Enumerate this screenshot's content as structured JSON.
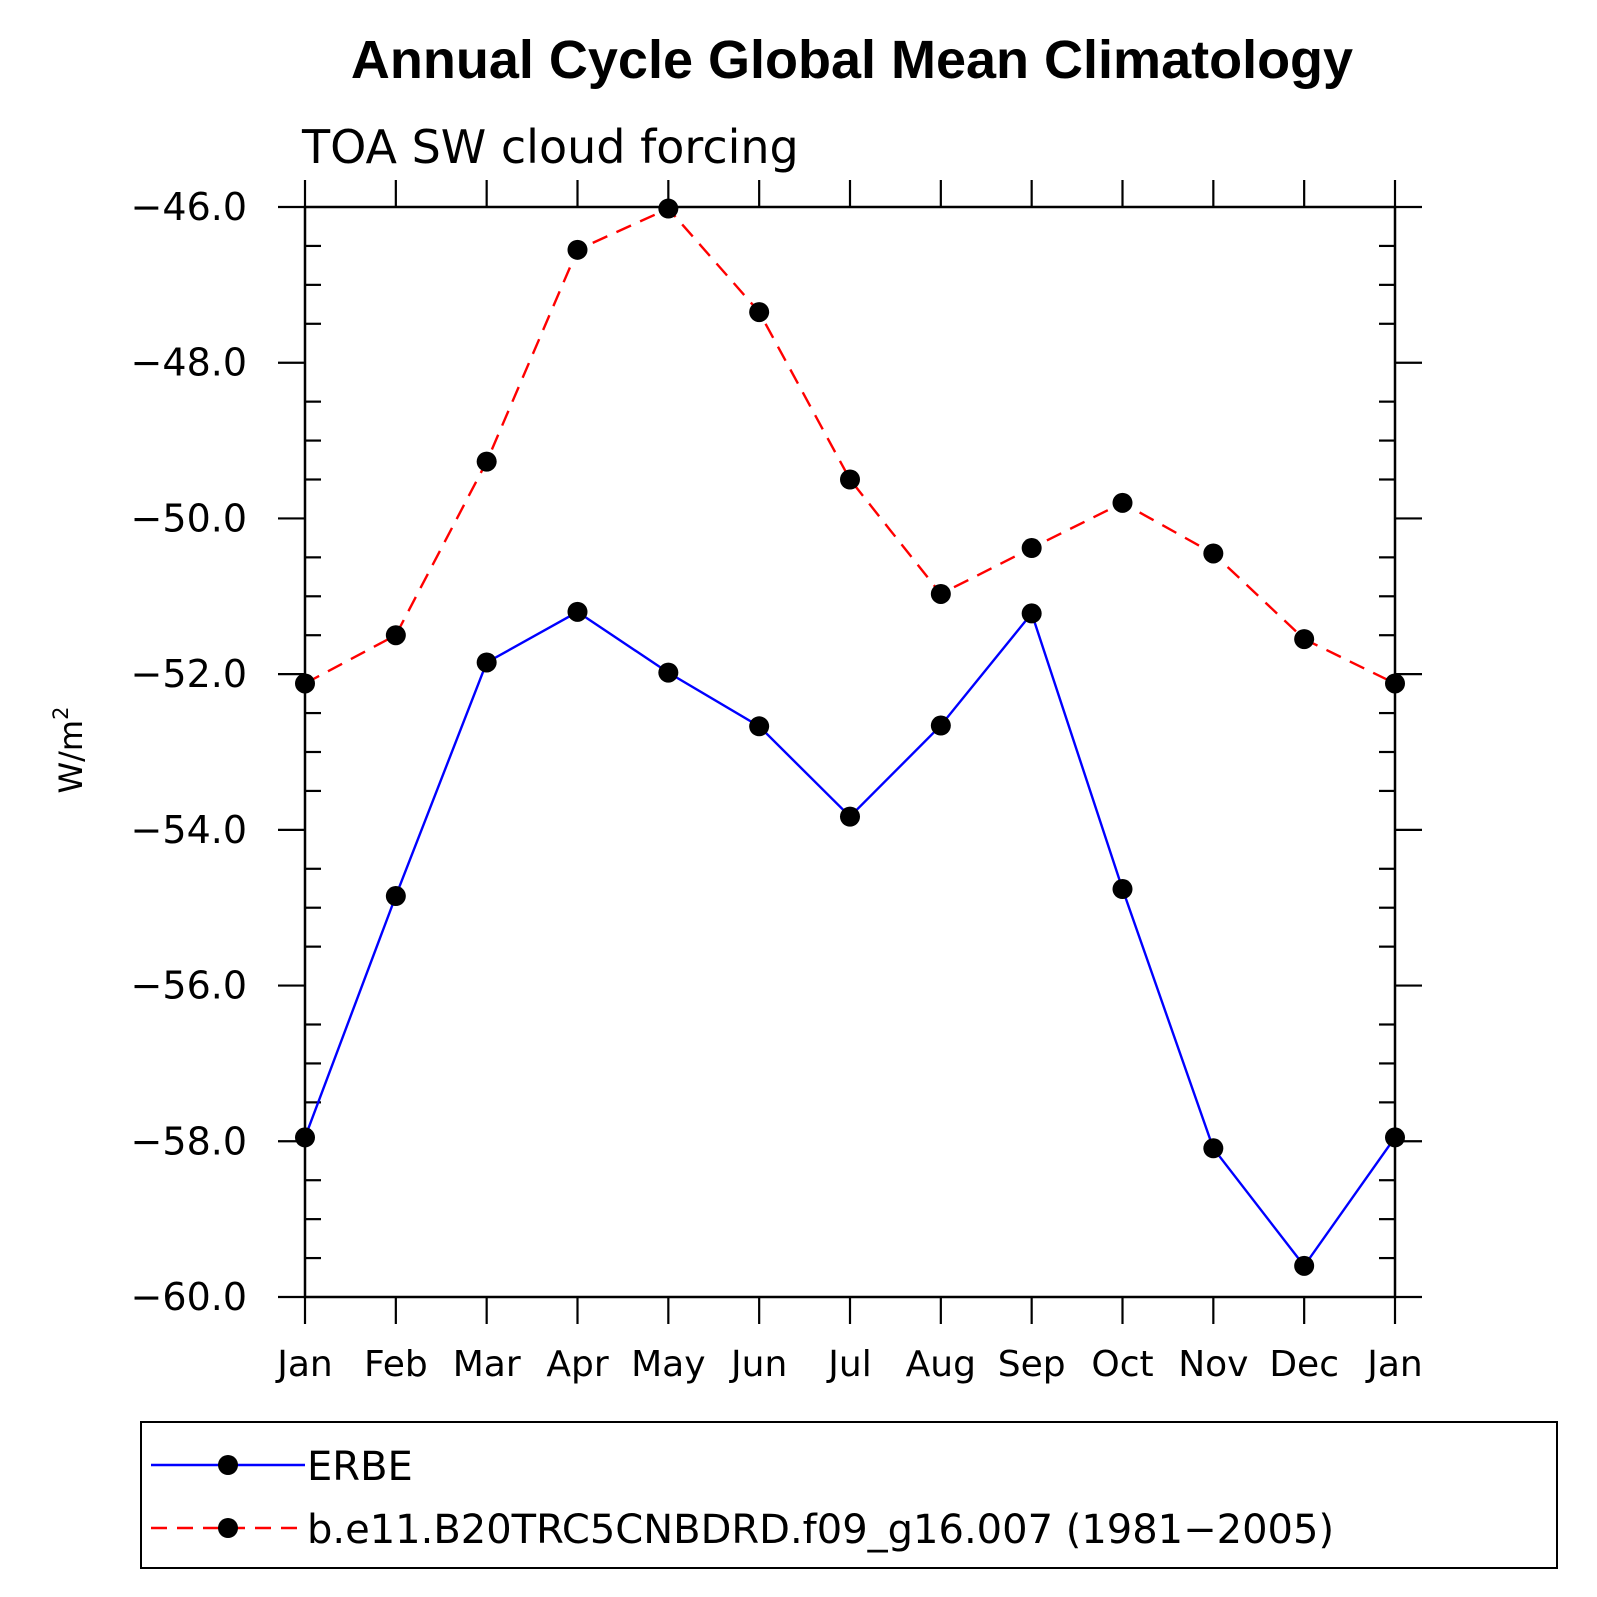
{
  "chart_data": {
    "type": "line",
    "title": "Annual Cycle Global Mean Climatology",
    "subtitle": "TOA SW cloud forcing",
    "ylabel_base": "W/m",
    "ylabel_sup": "2",
    "categories": [
      "Jan",
      "Feb",
      "Mar",
      "Apr",
      "May",
      "Jun",
      "Jul",
      "Aug",
      "Sep",
      "Oct",
      "Nov",
      "Dec",
      "Jan"
    ],
    "ylim": [
      -60.0,
      -46.0
    ],
    "yticks": [
      -46.0,
      -48.0,
      -50.0,
      -52.0,
      -54.0,
      -56.0,
      -58.0,
      -60.0
    ],
    "ytick_labels": [
      "−46.0",
      "−48.0",
      "−50.0",
      "−52.0",
      "−54.0",
      "−56.0",
      "−58.0",
      "−60.0"
    ],
    "grid": false,
    "legend_position": "bottom",
    "series": [
      {
        "name": "ERBE",
        "color": "#0000ff",
        "style": "solid",
        "marker": "filled-circle",
        "values": [
          -57.95,
          -54.85,
          -51.85,
          -51.2,
          -51.98,
          -52.67,
          -53.83,
          -52.66,
          -51.22,
          -54.76,
          -58.09,
          -59.6,
          -57.95
        ]
      },
      {
        "name": "b.e11.B20TRC5CNBDRD.f09_g16.007 (1981−2005)",
        "color": "#ff0000",
        "style": "dashed",
        "marker": "filled-circle",
        "values": [
          -52.12,
          -51.5,
          -49.27,
          -46.55,
          -46.02,
          -47.35,
          -49.5,
          -50.97,
          -50.38,
          -49.8,
          -50.45,
          -51.55,
          -52.12
        ]
      }
    ]
  }
}
